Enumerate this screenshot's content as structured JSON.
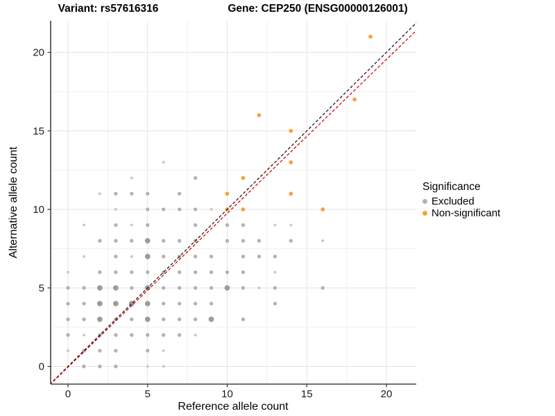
{
  "header": {
    "title_left": "Variant: rs57616316",
    "title_right": "Gene: CEP250 (ENSG00000126001)"
  },
  "legend": {
    "title": "Significance",
    "items": [
      {
        "label": "Excluded",
        "color": "#b3b3b3"
      },
      {
        "label": "Non-significant",
        "color": "#F8A13C"
      }
    ]
  },
  "chart_data": {
    "type": "scatter",
    "title_left": "Variant: rs57616316",
    "title_right": "Gene: CEP250 (ENSG00000126001)",
    "xlabel": "Reference allele count",
    "ylabel": "Alternative allele count",
    "xlim": [
      -1.15,
      22.2
    ],
    "ylim": [
      -1.15,
      22.0
    ],
    "x_ticks": [
      0,
      5,
      10,
      15,
      20
    ],
    "y_ticks": [
      0,
      5,
      10,
      15,
      20
    ],
    "minor_grid_step": 2.5,
    "grid": true,
    "legend_position": "right",
    "background": "#ffffff",
    "major_grid_color": "#e3e3e3",
    "minor_grid_color": "#f0f0f0",
    "axis_line_color": "#404040",
    "series": [
      {
        "name": "Excluded",
        "color": "#b3b3b3",
        "points": [
          [
            1,
            0,
            2
          ],
          [
            2,
            0,
            2
          ],
          [
            3,
            0,
            2
          ],
          [
            5,
            0,
            1
          ],
          [
            6,
            0,
            1
          ],
          [
            0,
            1,
            1
          ],
          [
            1,
            1,
            2
          ],
          [
            2,
            1,
            2
          ],
          [
            3,
            1,
            2
          ],
          [
            5,
            1,
            2
          ],
          [
            6,
            1,
            1
          ],
          [
            0,
            2,
            2
          ],
          [
            1,
            2,
            1
          ],
          [
            2,
            2,
            2
          ],
          [
            3,
            2,
            2
          ],
          [
            4,
            2,
            2
          ],
          [
            5,
            2,
            2
          ],
          [
            6,
            2,
            2
          ],
          [
            7,
            2,
            2
          ],
          [
            8,
            2,
            1
          ],
          [
            0,
            3,
            2
          ],
          [
            1,
            3,
            2
          ],
          [
            2,
            3,
            3
          ],
          [
            3,
            3,
            2
          ],
          [
            4,
            3,
            2
          ],
          [
            5,
            3,
            3
          ],
          [
            6,
            3,
            2
          ],
          [
            7,
            3,
            2
          ],
          [
            8,
            3,
            2
          ],
          [
            9,
            3,
            3
          ],
          [
            11,
            3,
            2
          ],
          [
            0,
            4,
            2
          ],
          [
            1,
            4,
            2
          ],
          [
            2,
            4,
            3
          ],
          [
            3,
            4,
            3
          ],
          [
            4,
            4,
            3
          ],
          [
            5,
            4,
            3
          ],
          [
            6,
            4,
            2
          ],
          [
            7,
            4,
            2
          ],
          [
            8,
            4,
            2
          ],
          [
            9,
            4,
            2
          ],
          [
            13,
            4,
            2
          ],
          [
            0,
            5,
            2
          ],
          [
            1,
            5,
            2
          ],
          [
            2,
            5,
            3
          ],
          [
            3,
            5,
            3
          ],
          [
            4,
            5,
            2
          ],
          [
            5,
            5,
            3
          ],
          [
            6,
            5,
            2
          ],
          [
            7,
            5,
            2
          ],
          [
            8,
            5,
            2
          ],
          [
            9,
            5,
            2
          ],
          [
            10,
            5,
            3
          ],
          [
            11,
            5,
            2
          ],
          [
            12,
            5,
            1
          ],
          [
            13,
            5,
            2
          ],
          [
            16,
            5,
            2
          ],
          [
            0,
            6,
            1
          ],
          [
            2,
            6,
            2
          ],
          [
            3,
            6,
            2
          ],
          [
            4,
            6,
            2
          ],
          [
            5,
            6,
            2
          ],
          [
            6,
            6,
            2
          ],
          [
            7,
            6,
            2
          ],
          [
            8,
            6,
            2
          ],
          [
            9,
            6,
            2
          ],
          [
            10,
            6,
            2
          ],
          [
            11,
            6,
            2
          ],
          [
            13,
            6,
            1
          ],
          [
            1,
            7,
            1
          ],
          [
            3,
            7,
            2
          ],
          [
            4,
            7,
            1
          ],
          [
            5,
            7,
            3
          ],
          [
            6,
            7,
            2
          ],
          [
            7,
            7,
            2
          ],
          [
            8,
            7,
            2
          ],
          [
            9,
            7,
            2
          ],
          [
            11,
            7,
            2
          ],
          [
            12,
            7,
            2
          ],
          [
            13,
            7,
            2
          ],
          [
            2,
            8,
            2
          ],
          [
            3,
            8,
            2
          ],
          [
            4,
            8,
            2
          ],
          [
            5,
            8,
            3
          ],
          [
            6,
            8,
            2
          ],
          [
            7,
            8,
            2
          ],
          [
            8,
            8,
            2
          ],
          [
            10,
            8,
            2
          ],
          [
            11,
            8,
            2
          ],
          [
            12,
            8,
            2
          ],
          [
            14,
            8,
            2
          ],
          [
            16,
            8,
            1
          ],
          [
            1,
            9,
            1
          ],
          [
            3,
            9,
            2
          ],
          [
            4,
            9,
            1
          ],
          [
            5,
            9,
            2
          ],
          [
            8,
            9,
            2
          ],
          [
            10,
            9,
            2
          ],
          [
            11,
            9,
            2
          ],
          [
            13,
            9,
            1
          ],
          [
            14,
            9,
            1
          ],
          [
            3,
            10,
            1
          ],
          [
            5,
            10,
            2
          ],
          [
            6,
            10,
            2
          ],
          [
            7,
            10,
            2
          ],
          [
            8,
            10,
            2
          ],
          [
            9,
            10,
            1
          ],
          [
            2,
            11,
            1
          ],
          [
            3,
            11,
            2
          ],
          [
            4,
            11,
            2
          ],
          [
            5,
            11,
            2
          ],
          [
            7,
            11,
            2
          ],
          [
            4,
            12,
            1
          ],
          [
            8,
            12,
            2
          ],
          [
            6,
            13,
            1
          ]
        ]
      },
      {
        "name": "Non-significant",
        "color": "#F8A13C",
        "points": [
          [
            10,
            10,
            2
          ],
          [
            11,
            10,
            2
          ],
          [
            16,
            10,
            2
          ],
          [
            10,
            11,
            2
          ],
          [
            14,
            11,
            2
          ],
          [
            11,
            12,
            2
          ],
          [
            14,
            13,
            2
          ],
          [
            14,
            15,
            2
          ],
          [
            12,
            16,
            2
          ],
          [
            18,
            17,
            2
          ],
          [
            19,
            21,
            2
          ]
        ]
      }
    ],
    "lines": [
      {
        "name": "identity-line",
        "style": "dashed",
        "color": "#1a1a1a",
        "slope": 1.0,
        "intercept": 0.0
      },
      {
        "name": "fit-line",
        "style": "dashed",
        "color": "#E00000",
        "slope": 0.98,
        "intercept": -0.05
      }
    ]
  }
}
